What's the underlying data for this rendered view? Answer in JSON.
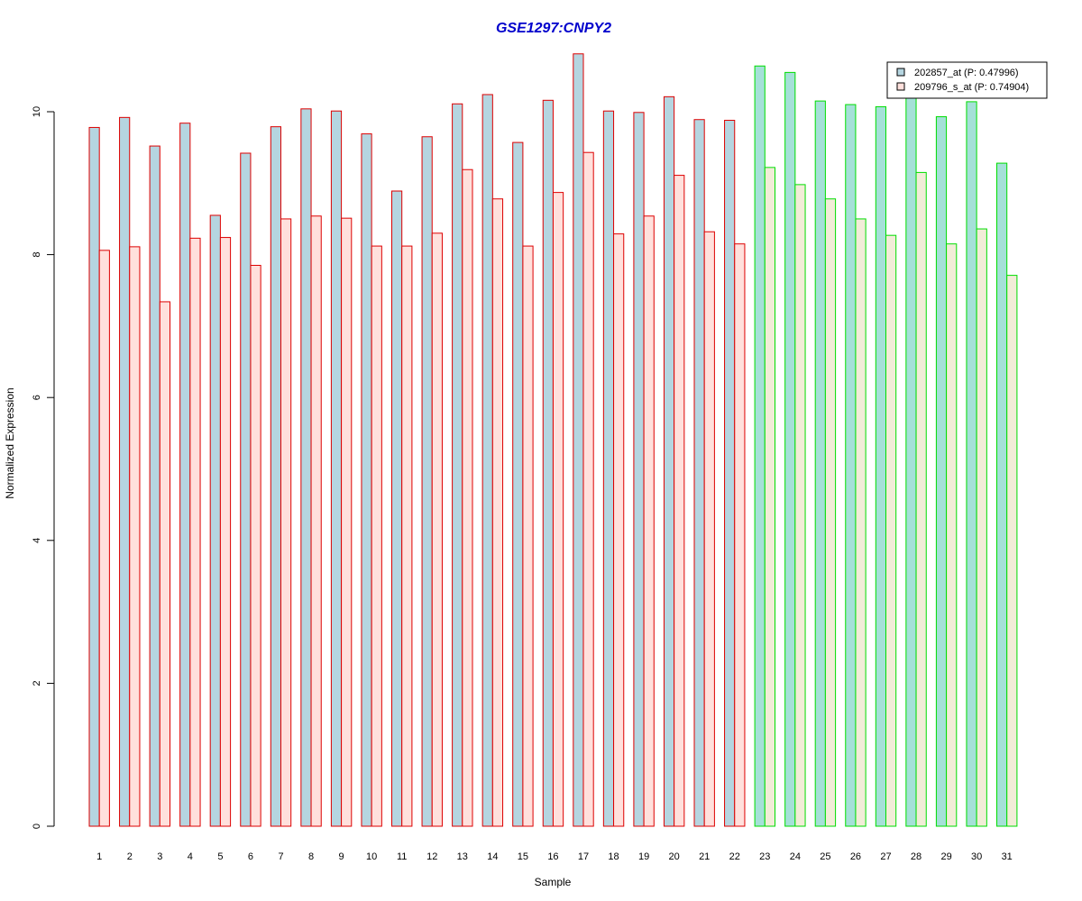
{
  "chart_data": {
    "type": "bar",
    "title": "GSE1297:CNPY2",
    "xlabel": "Sample",
    "ylabel": "Normalized Expression",
    "ylim": [
      0,
      11
    ],
    "yticks": [
      0,
      2,
      4,
      6,
      8,
      10
    ],
    "categories": [
      "1",
      "2",
      "3",
      "4",
      "5",
      "6",
      "7",
      "8",
      "9",
      "10",
      "11",
      "12",
      "13",
      "14",
      "15",
      "16",
      "17",
      "18",
      "19",
      "20",
      "21",
      "22",
      "23",
      "24",
      "25",
      "26",
      "27",
      "28",
      "29",
      "30",
      "31"
    ],
    "groups": [
      {
        "samples": "1-22",
        "border_color": "#dd0000"
      },
      {
        "samples": "23-31",
        "border_color": "#00dd00"
      }
    ],
    "series": [
      {
        "name": "202857_at (P: 0.47996)",
        "fill_group1": "#b5d5e0",
        "fill_group2": "#a5e0d8",
        "values": [
          9.78,
          9.92,
          9.52,
          9.84,
          8.55,
          9.42,
          9.79,
          10.04,
          10.01,
          9.69,
          8.89,
          9.65,
          10.11,
          10.24,
          9.57,
          10.16,
          10.81,
          10.01,
          9.99,
          10.21,
          9.89,
          9.88,
          10.64,
          10.55,
          10.15,
          10.1,
          10.07,
          10.26,
          9.93,
          10.14,
          9.28
        ]
      },
      {
        "name": "209796_s_at (P: 0.74904)",
        "fill_group1": "#ffe0dc",
        "fill_group2": "#f2ecd8",
        "values": [
          8.06,
          8.11,
          7.34,
          8.23,
          8.24,
          7.85,
          8.5,
          8.54,
          8.51,
          8.12,
          8.12,
          8.3,
          9.19,
          8.78,
          8.12,
          8.87,
          9.43,
          8.29,
          8.54,
          9.11,
          8.32,
          8.15,
          9.22,
          8.98,
          8.78,
          8.5,
          8.27,
          9.15,
          8.15,
          8.36,
          7.71
        ]
      }
    ],
    "legend": {
      "position": "top-right",
      "entries": [
        {
          "label": "202857_at (P: 0.47996)",
          "color": "#b5d5e0"
        },
        {
          "label": "209796_s_at (P: 0.74904)",
          "color": "#ffe0dc"
        }
      ]
    },
    "grid": false
  }
}
